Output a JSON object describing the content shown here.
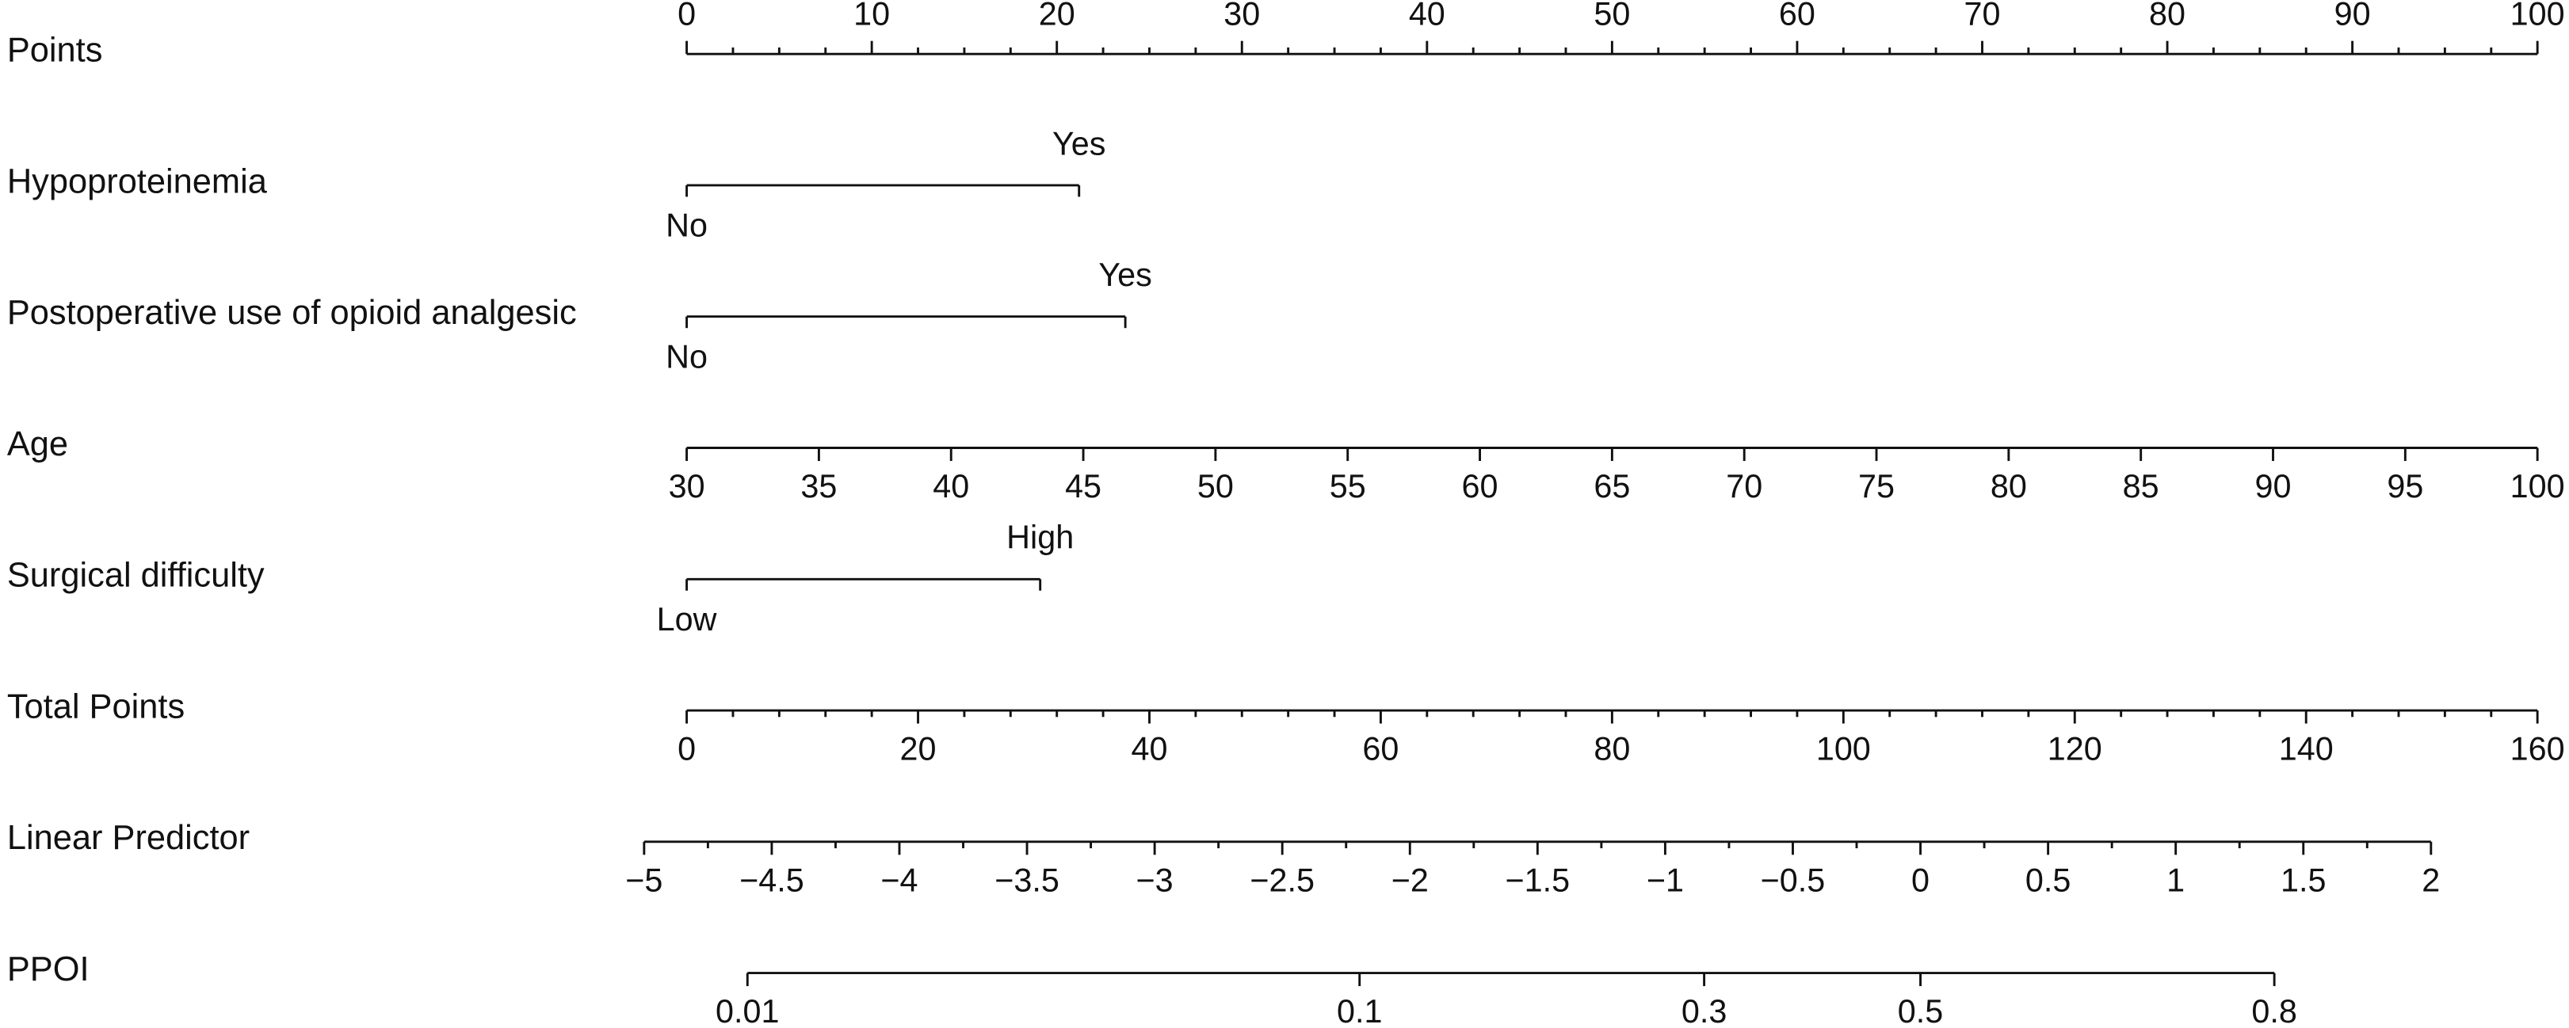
{
  "chart_data": {
    "type": "nomogram",
    "rows": [
      {
        "type": "axis",
        "label": "Points",
        "xlim": [
          0,
          100
        ],
        "xticks": [
          0,
          10,
          20,
          30,
          40,
          50,
          60,
          70,
          80,
          90,
          100
        ],
        "minor_ticks": [
          2.5,
          5,
          7.5,
          12.5,
          15,
          17.5,
          22.5,
          25,
          27.5,
          32.5,
          35,
          37.5,
          42.5,
          45,
          47.5,
          52.5,
          55,
          57.5,
          62.5,
          65,
          67.5,
          72.5,
          75,
          77.5,
          82.5,
          85,
          87.5,
          92.5,
          95,
          97.5
        ]
      },
      {
        "type": "categorical",
        "label": "Hypoproteinemia",
        "categories": [
          "No",
          "Yes"
        ],
        "values": [
          0,
          21.2
        ]
      },
      {
        "type": "categorical",
        "label": "Postoperative use of opioid analgesic",
        "categories": [
          "No",
          "Yes"
        ],
        "values": [
          0,
          23.7
        ]
      },
      {
        "type": "axis",
        "label": "Age",
        "xlim": [
          30,
          100
        ],
        "xticks": [
          30,
          35,
          40,
          45,
          50,
          55,
          60,
          65,
          70,
          75,
          80,
          85,
          90,
          95,
          100
        ],
        "minor_ticks": []
      },
      {
        "type": "categorical",
        "label": "Surgical difficulty",
        "categories": [
          "Low",
          "High"
        ],
        "values": [
          0,
          19.1
        ]
      },
      {
        "type": "axis",
        "label": "Total Points",
        "xlim": [
          0,
          160
        ],
        "xticks": [
          0,
          20,
          40,
          60,
          80,
          100,
          120,
          140,
          160
        ],
        "minor_ticks": [
          4,
          8,
          12,
          16,
          24,
          28,
          32,
          36,
          44,
          48,
          52,
          56,
          64,
          68,
          72,
          76,
          84,
          88,
          92,
          96,
          104,
          108,
          112,
          116,
          124,
          128,
          132,
          136,
          144,
          148,
          152,
          156
        ]
      },
      {
        "type": "axis",
        "label": "Linear Predictor",
        "xlim": [
          -5,
          2
        ],
        "xticks": [
          {
            "value": -5,
            "label": "−5"
          },
          {
            "value": -4.5,
            "label": "−4.5"
          },
          {
            "value": -4,
            "label": "−4"
          },
          {
            "value": -3.5,
            "label": "−3.5"
          },
          {
            "value": -3,
            "label": "−3"
          },
          {
            "value": -2.5,
            "label": "−2.5"
          },
          {
            "value": -2,
            "label": "−2"
          },
          {
            "value": -1.5,
            "label": "−1.5"
          },
          {
            "value": -1,
            "label": "−1"
          },
          {
            "value": -0.5,
            "label": "−0.5"
          },
          0,
          0.5,
          1,
          1.5,
          2
        ],
        "minor_ticks": [
          -4.75,
          -4.25,
          -3.75,
          -3.25,
          -2.75,
          -2.25,
          -1.75,
          -1.25,
          -0.75,
          -0.25,
          0.25,
          0.75,
          1.25,
          1.75
        ]
      },
      {
        "type": "probability",
        "label": "PPOI",
        "xticks": [
          0.01,
          0.1,
          0.3,
          0.5,
          0.8
        ]
      }
    ]
  }
}
